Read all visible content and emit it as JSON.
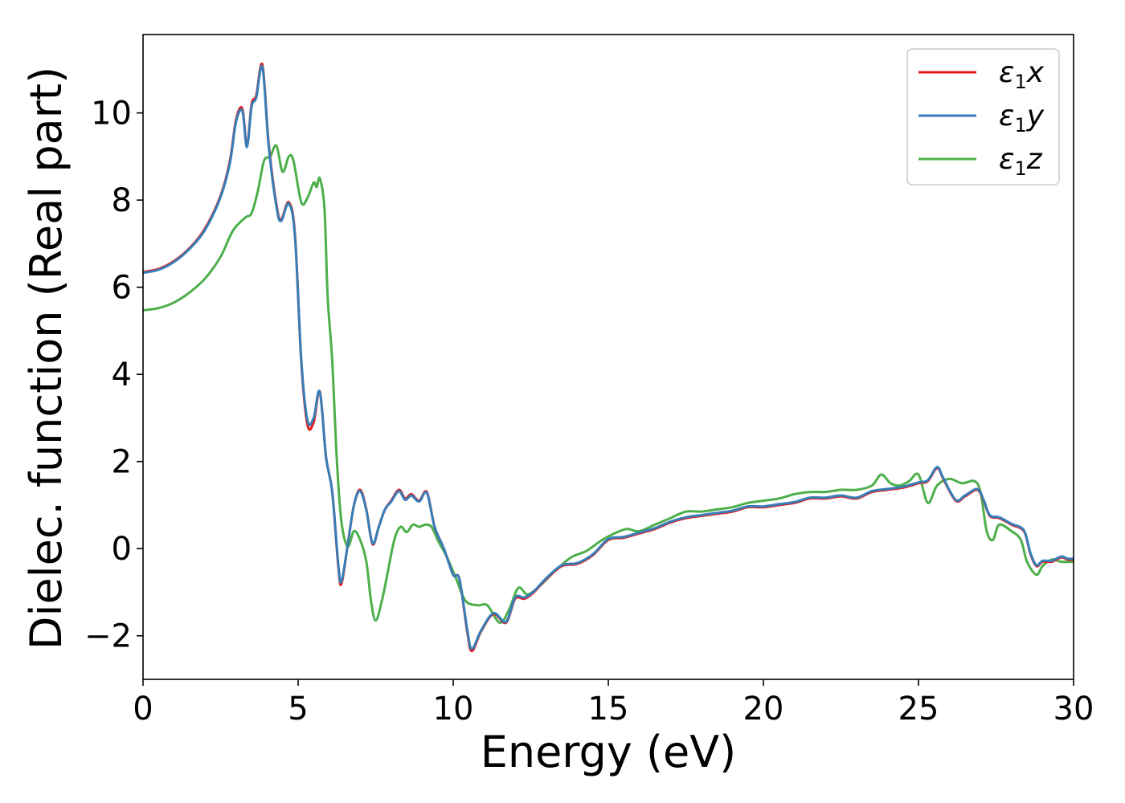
{
  "chart_data": {
    "type": "line",
    "title": "",
    "xlabel": "Energy (eV)",
    "ylabel": "Dielec. function (Real part)",
    "xlim": [
      0,
      30
    ],
    "ylim": [
      -3.0,
      11.8
    ],
    "xticks": [
      0,
      5,
      10,
      15,
      20,
      25,
      30
    ],
    "xtick_labels": [
      "0",
      "5",
      "10",
      "15",
      "20",
      "25",
      "30"
    ],
    "yticks": [
      -2,
      0,
      2,
      4,
      6,
      8,
      10
    ],
    "ytick_labels": [
      "−2",
      "0",
      "2",
      "4",
      "6",
      "8",
      "10"
    ],
    "grid": false,
    "legend_position": "top-right",
    "series": [
      {
        "name": "ε1x",
        "symbol": "ε",
        "subscript": "1",
        "axis": "x",
        "color": "#e41a1c",
        "points": [
          [
            0.0,
            6.35
          ],
          [
            0.5,
            6.42
          ],
          [
            1.0,
            6.6
          ],
          [
            1.5,
            6.9
          ],
          [
            2.0,
            7.35
          ],
          [
            2.5,
            8.1
          ],
          [
            2.8,
            8.9
          ],
          [
            3.0,
            9.85
          ],
          [
            3.2,
            10.1
          ],
          [
            3.35,
            9.25
          ],
          [
            3.5,
            10.2
          ],
          [
            3.65,
            10.4
          ],
          [
            3.85,
            11.1
          ],
          [
            4.05,
            9.3
          ],
          [
            4.3,
            7.9
          ],
          [
            4.45,
            7.55
          ],
          [
            4.7,
            7.95
          ],
          [
            4.9,
            7.2
          ],
          [
            5.1,
            4.3
          ],
          [
            5.3,
            2.85
          ],
          [
            5.5,
            2.9
          ],
          [
            5.7,
            3.6
          ],
          [
            5.9,
            2.1
          ],
          [
            6.1,
            1.3
          ],
          [
            6.3,
            -0.45
          ],
          [
            6.4,
            -0.8
          ],
          [
            6.6,
            0.1
          ],
          [
            6.8,
            1.0
          ],
          [
            7.0,
            1.35
          ],
          [
            7.2,
            0.9
          ],
          [
            7.4,
            0.1
          ],
          [
            7.6,
            0.5
          ],
          [
            7.8,
            0.9
          ],
          [
            8.0,
            1.1
          ],
          [
            8.25,
            1.35
          ],
          [
            8.45,
            1.15
          ],
          [
            8.65,
            1.25
          ],
          [
            8.9,
            1.1
          ],
          [
            9.15,
            1.3
          ],
          [
            9.4,
            0.5
          ],
          [
            9.7,
            0.0
          ],
          [
            10.0,
            -0.6
          ],
          [
            10.2,
            -0.7
          ],
          [
            10.45,
            -1.9
          ],
          [
            10.6,
            -2.35
          ],
          [
            10.9,
            -1.9
          ],
          [
            11.3,
            -1.5
          ],
          [
            11.7,
            -1.7
          ],
          [
            12.0,
            -1.15
          ],
          [
            12.3,
            -1.15
          ],
          [
            12.6,
            -1.0
          ],
          [
            13.0,
            -0.7
          ],
          [
            13.5,
            -0.4
          ],
          [
            14.0,
            -0.35
          ],
          [
            14.5,
            -0.15
          ],
          [
            15.0,
            0.2
          ],
          [
            15.5,
            0.25
          ],
          [
            16.0,
            0.35
          ],
          [
            16.5,
            0.45
          ],
          [
            17.0,
            0.6
          ],
          [
            17.5,
            0.7
          ],
          [
            18.0,
            0.75
          ],
          [
            18.5,
            0.8
          ],
          [
            19.0,
            0.85
          ],
          [
            19.5,
            0.95
          ],
          [
            20.0,
            0.95
          ],
          [
            20.5,
            1.0
          ],
          [
            21.0,
            1.05
          ],
          [
            21.5,
            1.15
          ],
          [
            22.0,
            1.15
          ],
          [
            22.5,
            1.2
          ],
          [
            23.0,
            1.15
          ],
          [
            23.5,
            1.3
          ],
          [
            24.0,
            1.35
          ],
          [
            24.5,
            1.4
          ],
          [
            25.0,
            1.5
          ],
          [
            25.3,
            1.55
          ],
          [
            25.6,
            1.85
          ],
          [
            25.8,
            1.6
          ],
          [
            26.2,
            1.1
          ],
          [
            26.5,
            1.2
          ],
          [
            26.9,
            1.35
          ],
          [
            27.1,
            1.1
          ],
          [
            27.3,
            0.75
          ],
          [
            27.6,
            0.7
          ],
          [
            28.0,
            0.55
          ],
          [
            28.4,
            0.4
          ],
          [
            28.6,
            -0.1
          ],
          [
            28.8,
            -0.4
          ],
          [
            29.0,
            -0.3
          ],
          [
            29.3,
            -0.3
          ],
          [
            29.6,
            -0.2
          ],
          [
            29.8,
            -0.25
          ],
          [
            30.0,
            -0.25
          ]
        ]
      },
      {
        "name": "ε1y",
        "symbol": "ε",
        "subscript": "1",
        "axis": "y",
        "color": "#377eb8",
        "points": [
          [
            0.0,
            6.33
          ],
          [
            0.5,
            6.4
          ],
          [
            1.0,
            6.58
          ],
          [
            1.5,
            6.88
          ],
          [
            2.0,
            7.32
          ],
          [
            2.5,
            8.07
          ],
          [
            2.8,
            8.85
          ],
          [
            3.0,
            9.8
          ],
          [
            3.2,
            10.05
          ],
          [
            3.35,
            9.22
          ],
          [
            3.5,
            10.15
          ],
          [
            3.65,
            10.35
          ],
          [
            3.85,
            11.05
          ],
          [
            4.05,
            9.25
          ],
          [
            4.3,
            7.85
          ],
          [
            4.45,
            7.52
          ],
          [
            4.7,
            7.92
          ],
          [
            4.9,
            7.15
          ],
          [
            5.1,
            4.35
          ],
          [
            5.3,
            2.95
          ],
          [
            5.5,
            3.0
          ],
          [
            5.7,
            3.6
          ],
          [
            5.9,
            2.1
          ],
          [
            6.1,
            1.3
          ],
          [
            6.3,
            -0.4
          ],
          [
            6.4,
            -0.75
          ],
          [
            6.6,
            0.1
          ],
          [
            6.8,
            1.0
          ],
          [
            7.0,
            1.32
          ],
          [
            7.2,
            0.88
          ],
          [
            7.4,
            0.12
          ],
          [
            7.6,
            0.5
          ],
          [
            7.8,
            0.9
          ],
          [
            8.0,
            1.08
          ],
          [
            8.25,
            1.32
          ],
          [
            8.45,
            1.12
          ],
          [
            8.65,
            1.22
          ],
          [
            8.9,
            1.08
          ],
          [
            9.15,
            1.28
          ],
          [
            9.4,
            0.5
          ],
          [
            9.7,
            0.0
          ],
          [
            10.0,
            -0.6
          ],
          [
            10.2,
            -0.7
          ],
          [
            10.45,
            -1.85
          ],
          [
            10.6,
            -2.3
          ],
          [
            10.9,
            -1.88
          ],
          [
            11.3,
            -1.48
          ],
          [
            11.7,
            -1.68
          ],
          [
            12.0,
            -1.12
          ],
          [
            12.3,
            -1.12
          ],
          [
            12.6,
            -0.98
          ],
          [
            13.0,
            -0.68
          ],
          [
            13.5,
            -0.38
          ],
          [
            14.0,
            -0.33
          ],
          [
            14.5,
            -0.13
          ],
          [
            15.0,
            0.22
          ],
          [
            15.5,
            0.27
          ],
          [
            16.0,
            0.37
          ],
          [
            16.5,
            0.47
          ],
          [
            17.0,
            0.62
          ],
          [
            17.5,
            0.72
          ],
          [
            18.0,
            0.77
          ],
          [
            18.5,
            0.82
          ],
          [
            19.0,
            0.87
          ],
          [
            19.5,
            0.97
          ],
          [
            20.0,
            0.97
          ],
          [
            20.5,
            1.02
          ],
          [
            21.0,
            1.07
          ],
          [
            21.5,
            1.17
          ],
          [
            22.0,
            1.17
          ],
          [
            22.5,
            1.22
          ],
          [
            23.0,
            1.17
          ],
          [
            23.5,
            1.32
          ],
          [
            24.0,
            1.37
          ],
          [
            24.5,
            1.42
          ],
          [
            25.0,
            1.52
          ],
          [
            25.3,
            1.57
          ],
          [
            25.6,
            1.87
          ],
          [
            25.8,
            1.62
          ],
          [
            26.2,
            1.12
          ],
          [
            26.5,
            1.22
          ],
          [
            26.9,
            1.37
          ],
          [
            27.1,
            1.12
          ],
          [
            27.3,
            0.77
          ],
          [
            27.6,
            0.72
          ],
          [
            28.0,
            0.57
          ],
          [
            28.4,
            0.42
          ],
          [
            28.6,
            -0.08
          ],
          [
            28.8,
            -0.38
          ],
          [
            29.0,
            -0.28
          ],
          [
            29.3,
            -0.28
          ],
          [
            29.6,
            -0.18
          ],
          [
            29.8,
            -0.23
          ],
          [
            30.0,
            -0.23
          ]
        ]
      },
      {
        "name": "ε1z",
        "symbol": "ε",
        "subscript": "1",
        "axis": "z",
        "color": "#4daf4a",
        "points": [
          [
            0.0,
            5.47
          ],
          [
            0.5,
            5.52
          ],
          [
            1.0,
            5.65
          ],
          [
            1.5,
            5.88
          ],
          [
            2.0,
            6.2
          ],
          [
            2.5,
            6.7
          ],
          [
            2.9,
            7.3
          ],
          [
            3.3,
            7.6
          ],
          [
            3.5,
            7.7
          ],
          [
            3.7,
            8.2
          ],
          [
            3.9,
            8.9
          ],
          [
            4.1,
            9.0
          ],
          [
            4.3,
            9.25
          ],
          [
            4.5,
            8.65
          ],
          [
            4.7,
            9.0
          ],
          [
            4.85,
            8.9
          ],
          [
            5.1,
            7.95
          ],
          [
            5.3,
            8.05
          ],
          [
            5.5,
            8.4
          ],
          [
            5.6,
            8.3
          ],
          [
            5.7,
            8.5
          ],
          [
            5.85,
            7.8
          ],
          [
            5.95,
            5.8
          ],
          [
            6.1,
            4.3
          ],
          [
            6.25,
            2.0
          ],
          [
            6.4,
            0.6
          ],
          [
            6.6,
            0.05
          ],
          [
            6.8,
            0.4
          ],
          [
            7.0,
            0.2
          ],
          [
            7.2,
            -0.3
          ],
          [
            7.35,
            -1.2
          ],
          [
            7.5,
            -1.65
          ],
          [
            7.7,
            -1.2
          ],
          [
            7.9,
            -0.5
          ],
          [
            8.1,
            0.2
          ],
          [
            8.3,
            0.5
          ],
          [
            8.5,
            0.38
          ],
          [
            8.7,
            0.55
          ],
          [
            8.9,
            0.5
          ],
          [
            9.1,
            0.55
          ],
          [
            9.3,
            0.5
          ],
          [
            9.5,
            0.2
          ],
          [
            9.8,
            -0.2
          ],
          [
            10.1,
            -0.7
          ],
          [
            10.4,
            -1.2
          ],
          [
            10.8,
            -1.3
          ],
          [
            11.1,
            -1.3
          ],
          [
            11.5,
            -1.7
          ],
          [
            11.8,
            -1.4
          ],
          [
            12.1,
            -0.9
          ],
          [
            12.4,
            -1.05
          ],
          [
            12.8,
            -0.85
          ],
          [
            13.3,
            -0.5
          ],
          [
            13.8,
            -0.2
          ],
          [
            14.3,
            -0.05
          ],
          [
            14.8,
            0.2
          ],
          [
            15.2,
            0.35
          ],
          [
            15.6,
            0.45
          ],
          [
            16.0,
            0.4
          ],
          [
            16.5,
            0.55
          ],
          [
            17.0,
            0.7
          ],
          [
            17.5,
            0.85
          ],
          [
            18.0,
            0.85
          ],
          [
            18.5,
            0.9
          ],
          [
            19.0,
            0.95
          ],
          [
            19.5,
            1.05
          ],
          [
            20.0,
            1.1
          ],
          [
            20.5,
            1.15
          ],
          [
            21.0,
            1.25
          ],
          [
            21.5,
            1.3
          ],
          [
            22.0,
            1.3
          ],
          [
            22.5,
            1.35
          ],
          [
            23.0,
            1.35
          ],
          [
            23.5,
            1.45
          ],
          [
            23.8,
            1.7
          ],
          [
            24.1,
            1.5
          ],
          [
            24.4,
            1.45
          ],
          [
            24.7,
            1.55
          ],
          [
            25.0,
            1.7
          ],
          [
            25.3,
            1.05
          ],
          [
            25.6,
            1.45
          ],
          [
            26.0,
            1.6
          ],
          [
            26.4,
            1.5
          ],
          [
            26.8,
            1.55
          ],
          [
            27.0,
            1.3
          ],
          [
            27.2,
            0.4
          ],
          [
            27.4,
            0.2
          ],
          [
            27.6,
            0.55
          ],
          [
            28.0,
            0.4
          ],
          [
            28.3,
            0.2
          ],
          [
            28.5,
            -0.3
          ],
          [
            28.8,
            -0.6
          ],
          [
            29.0,
            -0.4
          ],
          [
            29.3,
            -0.25
          ],
          [
            29.6,
            -0.3
          ],
          [
            30.0,
            -0.3
          ]
        ]
      }
    ]
  }
}
